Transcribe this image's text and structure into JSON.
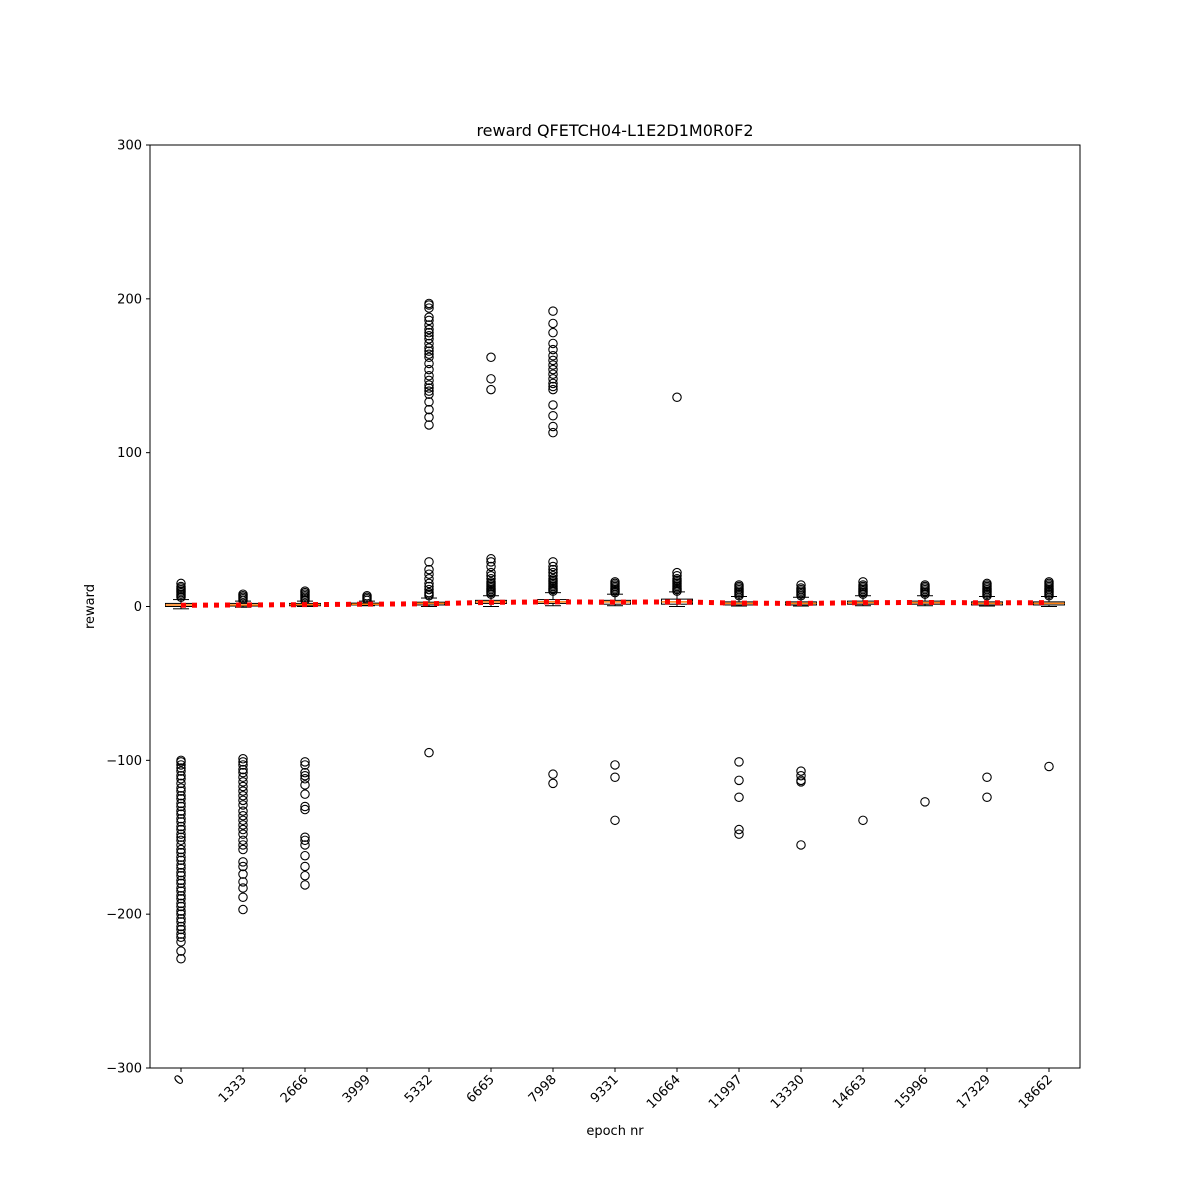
{
  "chart_data": {
    "type": "box",
    "title": "reward QFETCH04-L1E2D1M0R0F2",
    "xlabel": "epoch nr",
    "ylabel": "reward",
    "ylim": [
      -300,
      300
    ],
    "yticks": [
      -300,
      -200,
      -100,
      0,
      100,
      200,
      300
    ],
    "ytick_labels": [
      "−300",
      "−200",
      "−100",
      "0",
      "100",
      "200",
      "300"
    ],
    "categories": [
      "0",
      "1333",
      "2666",
      "3999",
      "5332",
      "6665",
      "7998",
      "9331",
      "10664",
      "11997",
      "13330",
      "14663",
      "15996",
      "17329",
      "18662"
    ],
    "boxes": [
      {
        "whislo": -1.5,
        "q1": 0.0,
        "med": 1.0,
        "q3": 2.0,
        "whishi": 4.5
      },
      {
        "whislo": -0.5,
        "q1": 0.3,
        "med": 1.0,
        "q3": 2.0,
        "whishi": 3.5
      },
      {
        "whislo": 0.0,
        "q1": 0.5,
        "med": 1.2,
        "q3": 2.0,
        "whishi": 3.5
      },
      {
        "whislo": 0.5,
        "q1": 1.0,
        "med": 1.5,
        "q3": 2.2,
        "whishi": 3.5
      },
      {
        "whislo": 0.0,
        "q1": 1.0,
        "med": 2.0,
        "q3": 2.8,
        "whishi": 5.5
      },
      {
        "whislo": 0.0,
        "q1": 2.0,
        "med": 3.0,
        "q3": 4.0,
        "whishi": 7.0
      },
      {
        "whislo": 0.5,
        "q1": 2.0,
        "med": 3.0,
        "q3": 4.5,
        "whishi": 9.0
      },
      {
        "whislo": 0.5,
        "q1": 1.5,
        "med": 3.0,
        "q3": 4.0,
        "whishi": 8.0
      },
      {
        "whislo": 0.0,
        "q1": 1.5,
        "med": 3.0,
        "q3": 4.8,
        "whishi": 9.5
      },
      {
        "whislo": 0.3,
        "q1": 1.0,
        "med": 2.0,
        "q3": 3.0,
        "whishi": 6.5
      },
      {
        "whislo": 0.3,
        "q1": 1.0,
        "med": 2.0,
        "q3": 3.0,
        "whishi": 6.0
      },
      {
        "whislo": 0.5,
        "q1": 1.5,
        "med": 2.5,
        "q3": 3.5,
        "whishi": 7.0
      },
      {
        "whislo": 0.5,
        "q1": 1.5,
        "med": 2.5,
        "q3": 3.5,
        "whishi": 7.0
      },
      {
        "whislo": 0.3,
        "q1": 1.0,
        "med": 2.0,
        "q3": 3.0,
        "whishi": 6.5
      },
      {
        "whislo": 0.0,
        "q1": 1.0,
        "med": 2.0,
        "q3": 3.0,
        "whishi": 6.5
      }
    ],
    "means": [
      0.8,
      1.0,
      1.2,
      1.5,
      1.8,
      2.7,
      3.0,
      2.8,
      3.0,
      2.2,
      2.0,
      2.5,
      2.6,
      2.4,
      2.5
    ],
    "fliers": [
      [
        15,
        13,
        12,
        11,
        10,
        9,
        8,
        7,
        6,
        -100,
        -101,
        -103,
        -105,
        -107,
        -110,
        -112,
        -115,
        -118,
        -120,
        -123,
        -125,
        -128,
        -130,
        -133,
        -135,
        -138,
        -140,
        -143,
        -145,
        -148,
        -150,
        -152,
        -155,
        -158,
        -160,
        -163,
        -165,
        -168,
        -170,
        -173,
        -175,
        -178,
        -180,
        -183,
        -185,
        -188,
        -190,
        -193,
        -195,
        -198,
        -200,
        -203,
        -205,
        -208,
        -210,
        -213,
        -215,
        -218,
        -224,
        -229
      ],
      [
        8,
        7,
        6,
        5,
        4,
        -99,
        -101,
        -103,
        -106,
        -108,
        -111,
        -114,
        -117,
        -120,
        -123,
        -126,
        -129,
        -133,
        -136,
        -139,
        -142,
        -145,
        -148,
        -152,
        -155,
        -158,
        -166,
        -169,
        -174,
        -179,
        -183,
        -189,
        -197
      ],
      [
        10,
        9,
        8,
        7,
        6,
        5,
        4,
        -101,
        -103,
        -108,
        -110,
        -112,
        -116,
        -122,
        -130,
        -132,
        -150,
        -152,
        -155,
        -162,
        -169,
        -175,
        -181
      ],
      [
        7,
        6,
        5,
        4
      ],
      [
        197,
        196,
        194,
        188,
        186,
        183,
        180,
        178,
        176,
        174,
        171,
        168,
        166,
        164,
        162,
        158,
        154,
        150,
        147,
        144,
        142,
        140,
        138,
        133,
        128,
        123,
        118,
        29,
        24,
        21,
        18,
        15,
        13,
        11,
        9,
        8,
        7,
        -95
      ],
      [
        162,
        148,
        141,
        31,
        29,
        26,
        22,
        20,
        18,
        16,
        15,
        14,
        13,
        12,
        11,
        10,
        9,
        8
      ],
      [
        192,
        184,
        178,
        171,
        167,
        163,
        160,
        157,
        154,
        151,
        148,
        145,
        143,
        141,
        131,
        124,
        117,
        113,
        29,
        26,
        24,
        22,
        20,
        18,
        17,
        16,
        15,
        14,
        13,
        12,
        11,
        10,
        -109,
        -115
      ],
      [
        16,
        15,
        14,
        13,
        12,
        11,
        10,
        9,
        -103,
        -111,
        -139
      ],
      [
        136,
        22,
        20,
        18,
        17,
        16,
        15,
        14,
        13,
        12,
        11,
        10
      ],
      [
        14,
        13,
        12,
        11,
        10,
        9,
        8,
        7,
        -101,
        -113,
        -124,
        -145,
        -148
      ],
      [
        14,
        12,
        11,
        10,
        9,
        8,
        7,
        -107,
        -110,
        -113,
        -114,
        -155
      ],
      [
        16,
        14,
        13,
        12,
        11,
        10,
        9,
        8,
        -139
      ],
      [
        14,
        13,
        12,
        11,
        10,
        9,
        8,
        -127
      ],
      [
        15,
        14,
        13,
        12,
        11,
        10,
        9,
        8,
        7,
        -111,
        -124
      ],
      [
        16,
        15,
        14,
        13,
        12,
        11,
        10,
        9,
        8,
        7,
        -104
      ]
    ],
    "colors": {
      "box_fill": "#ffffff",
      "box_edge": "#000000",
      "median": "#ff7f0e",
      "mean_line": "#ff0000",
      "flier_edge": "#000000"
    },
    "grid": false,
    "mean_line_style": "dotted"
  }
}
